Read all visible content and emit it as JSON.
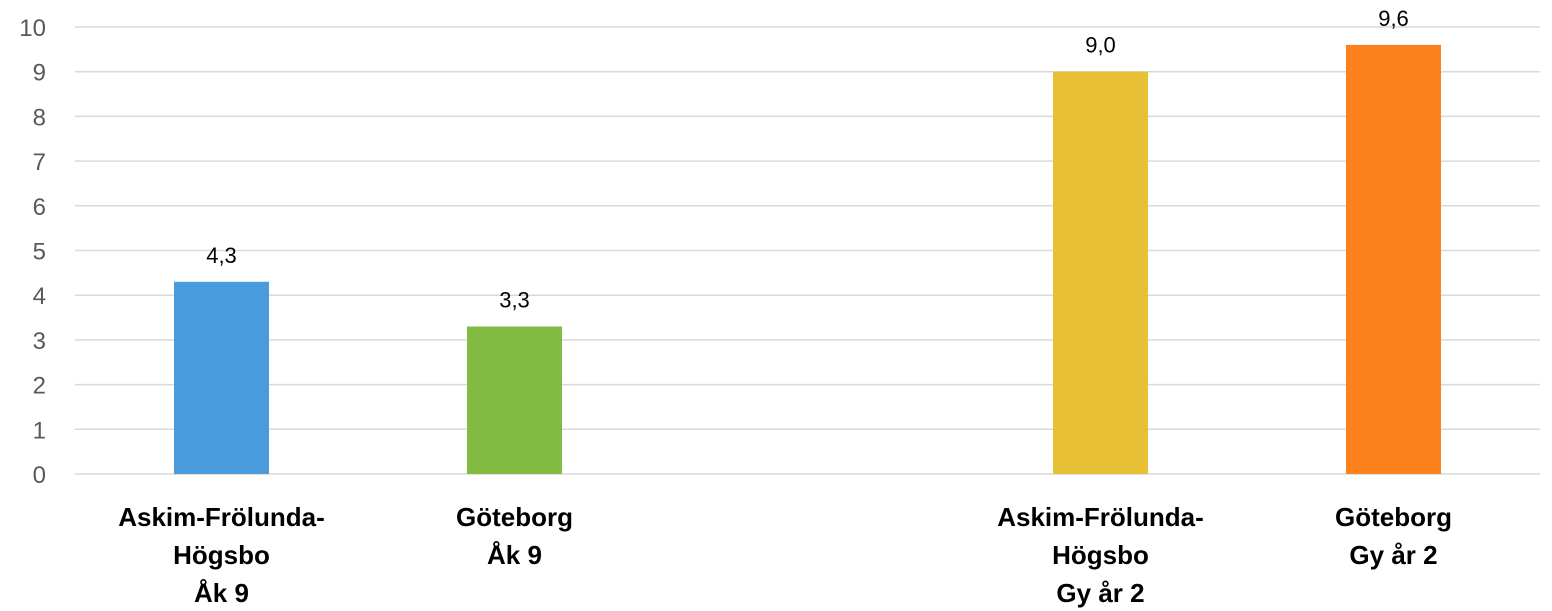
{
  "chart_data": {
    "type": "bar",
    "categories": [
      [
        "Askim-Frölunda-",
        "Högsbo",
        "Åk 9"
      ],
      [
        "Göteborg",
        "Åk 9"
      ],
      [],
      [
        "Askim-Frölunda-",
        "Högsbo",
        "Gy år 2"
      ],
      [
        "Göteborg",
        "Gy år 2"
      ]
    ],
    "values": [
      4.3,
      3.3,
      null,
      9.0,
      9.6
    ],
    "value_labels": [
      "4,3",
      "3,3",
      "",
      "9,0",
      "9,6"
    ],
    "colors": [
      "#4a9bdc",
      "#82bb41",
      "",
      "#e8c035",
      "#fd821d"
    ],
    "ylim": [
      0,
      10
    ],
    "yticks": [
      "0",
      "1",
      "2",
      "3",
      "4",
      "5",
      "6",
      "7",
      "8",
      "9",
      "10"
    ],
    "grid": true,
    "title": "",
    "xlabel": "",
    "ylabel": ""
  }
}
